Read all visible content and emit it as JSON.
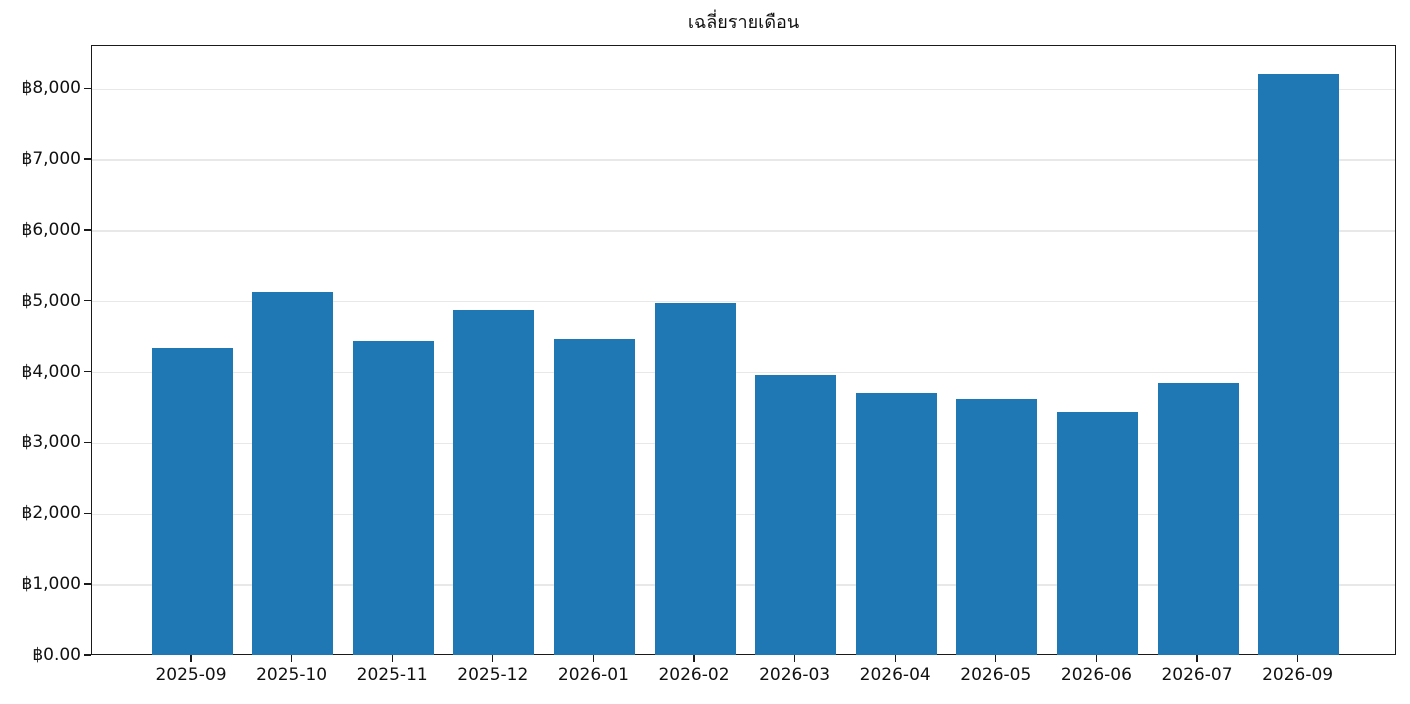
{
  "figure": {
    "title": "เฉลี่ยรายเดือน"
  },
  "chart_data": {
    "type": "bar",
    "title": "เฉลี่ยรายเดือน",
    "categories": [
      "2025-09",
      "2025-10",
      "2025-11",
      "2025-12",
      "2026-01",
      "2026-02",
      "2026-03",
      "2026-04",
      "2026-05",
      "2026-06",
      "2026-07",
      "2026-09"
    ],
    "values": [
      4330,
      5120,
      4430,
      4870,
      4460,
      4960,
      3950,
      3690,
      3610,
      3430,
      3840,
      8200
    ],
    "xlabel": "",
    "ylabel": "",
    "ylim": [
      0,
      8610
    ],
    "y_ticks": {
      "values": [
        0,
        1000,
        2000,
        3000,
        4000,
        5000,
        6000,
        7000,
        8000
      ],
      "labels": [
        "฿0.00",
        "฿1,000",
        "฿2,000",
        "฿3,000",
        "฿4,000",
        "฿5,000",
        "฿6,000",
        "฿7,000",
        "฿8,000"
      ]
    },
    "grid": {
      "horizontal": true,
      "vertical": false
    },
    "legend_position": "none",
    "bar_color": "#1f77b4",
    "gridline_color": "#e8e8e8",
    "axis_color": "#1a1a1a",
    "text_color": "#111111",
    "background_color": "#ffffff"
  }
}
